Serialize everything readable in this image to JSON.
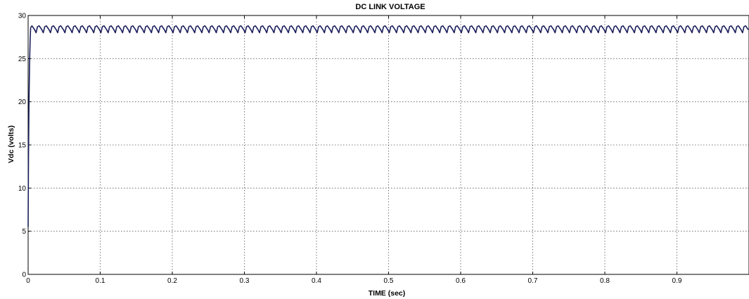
{
  "chart_data": {
    "type": "line",
    "title": "DC LINK VOLTAGE",
    "xlabel": "TIME (sec)",
    "ylabel": "Vdc (volts)",
    "xlim": [
      0,
      1
    ],
    "ylim": [
      0,
      30
    ],
    "xticks": [
      0,
      0.1,
      0.2,
      0.3,
      0.4,
      0.5,
      0.6,
      0.7,
      0.8,
      0.9
    ],
    "xtick_labels": [
      "0",
      "0.1",
      "0.2",
      "0.3",
      "0.4",
      "0.5",
      "0.6",
      "0.7",
      "0.8",
      "0.9"
    ],
    "yticks": [
      0,
      5,
      10,
      15,
      20,
      25,
      30
    ],
    "ytick_labels": [
      "0",
      "5",
      "10",
      "15",
      "20",
      "25",
      "30"
    ],
    "grid": true,
    "line_color": "#1a1f5c",
    "series": [
      {
        "startup": {
          "x": [
            0,
            0.0005,
            0.0012,
            0.002,
            0.0028,
            0.0035
          ],
          "y": [
            5.5,
            13.5,
            20,
            24.5,
            27.2,
            28.6
          ]
        },
        "steady_state": {
          "mean": 28.4,
          "min": 28.0,
          "max": 28.8,
          "ripple_period": 0.01,
          "start": 0.0035,
          "end": 1.0
        }
      }
    ]
  }
}
